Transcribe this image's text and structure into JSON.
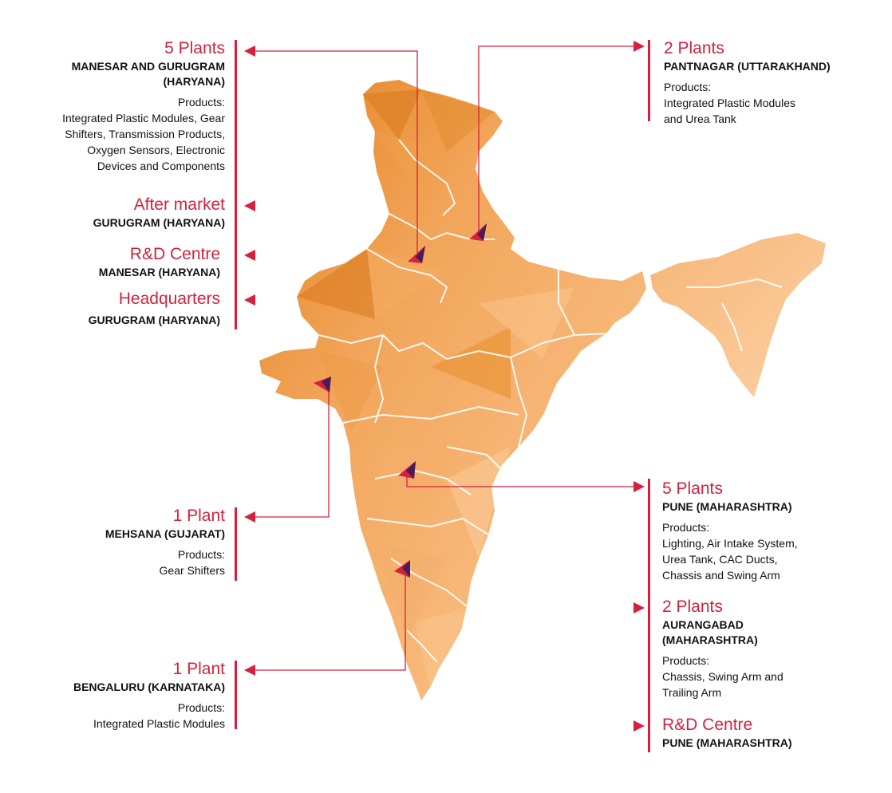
{
  "colors": {
    "accent": "#d4213d",
    "marker_dark": "#4a1d5a",
    "map_light": "#f8c48c",
    "map_dark": "#e8862c",
    "borders": "#ffffff"
  },
  "left": [
    {
      "heading": "5 Plants",
      "location": [
        "MANESAR AND GURUGRAM",
        "(HARYANA)"
      ],
      "products_label": "Products:",
      "products": [
        "Integrated Plastic Modules, Gear",
        "Shifters, Transmission Products,",
        "Oxygen Sensors, Electronic",
        "Devices and Components"
      ]
    },
    {
      "heading": "After market",
      "location": [
        "GURUGRAM (HARYANA)"
      ]
    },
    {
      "heading": "R&D Centre",
      "location": [
        "MANESAR (HARYANA)"
      ]
    },
    {
      "heading": "Headquarters",
      "location": [
        "GURUGRAM (HARYANA)"
      ]
    },
    {
      "heading": "1 Plant",
      "location": [
        "MEHSANA (GUJARAT)"
      ],
      "products_label": "Products:",
      "products": [
        "Gear Shifters"
      ]
    },
    {
      "heading": "1 Plant",
      "location": [
        "BENGALURU (KARNATAKA)"
      ],
      "products_label": "Products:",
      "products": [
        "Integrated Plastic Modules"
      ]
    }
  ],
  "right": [
    {
      "heading": "2 Plants",
      "location": [
        "PANTNAGAR (UTTARAKHAND)"
      ],
      "products_label": "Products:",
      "products": [
        "Integrated Plastic Modules",
        "and Urea Tank"
      ]
    },
    {
      "heading": "5 Plants",
      "location": [
        "PUNE (MAHARASHTRA)"
      ],
      "products_label": "Products:",
      "products": [
        "Lighting, Air Intake System,",
        "Urea Tank, CAC Ducts,",
        "Chassis and Swing Arm"
      ]
    },
    {
      "heading": "2 Plants",
      "location": [
        "AURANGABAD",
        "(MAHARASHTRA)"
      ],
      "products_label": "Products:",
      "products": [
        "Chassis, Swing Arm and",
        "Trailing Arm"
      ]
    },
    {
      "heading": "R&D Centre",
      "location": [
        "PUNE (MAHARASHTRA)"
      ]
    }
  ],
  "markers": [
    {
      "name": "marker-gurugram-manesar"
    },
    {
      "name": "marker-pantnagar"
    },
    {
      "name": "marker-mehsana"
    },
    {
      "name": "marker-pune"
    },
    {
      "name": "marker-bengaluru"
    }
  ]
}
